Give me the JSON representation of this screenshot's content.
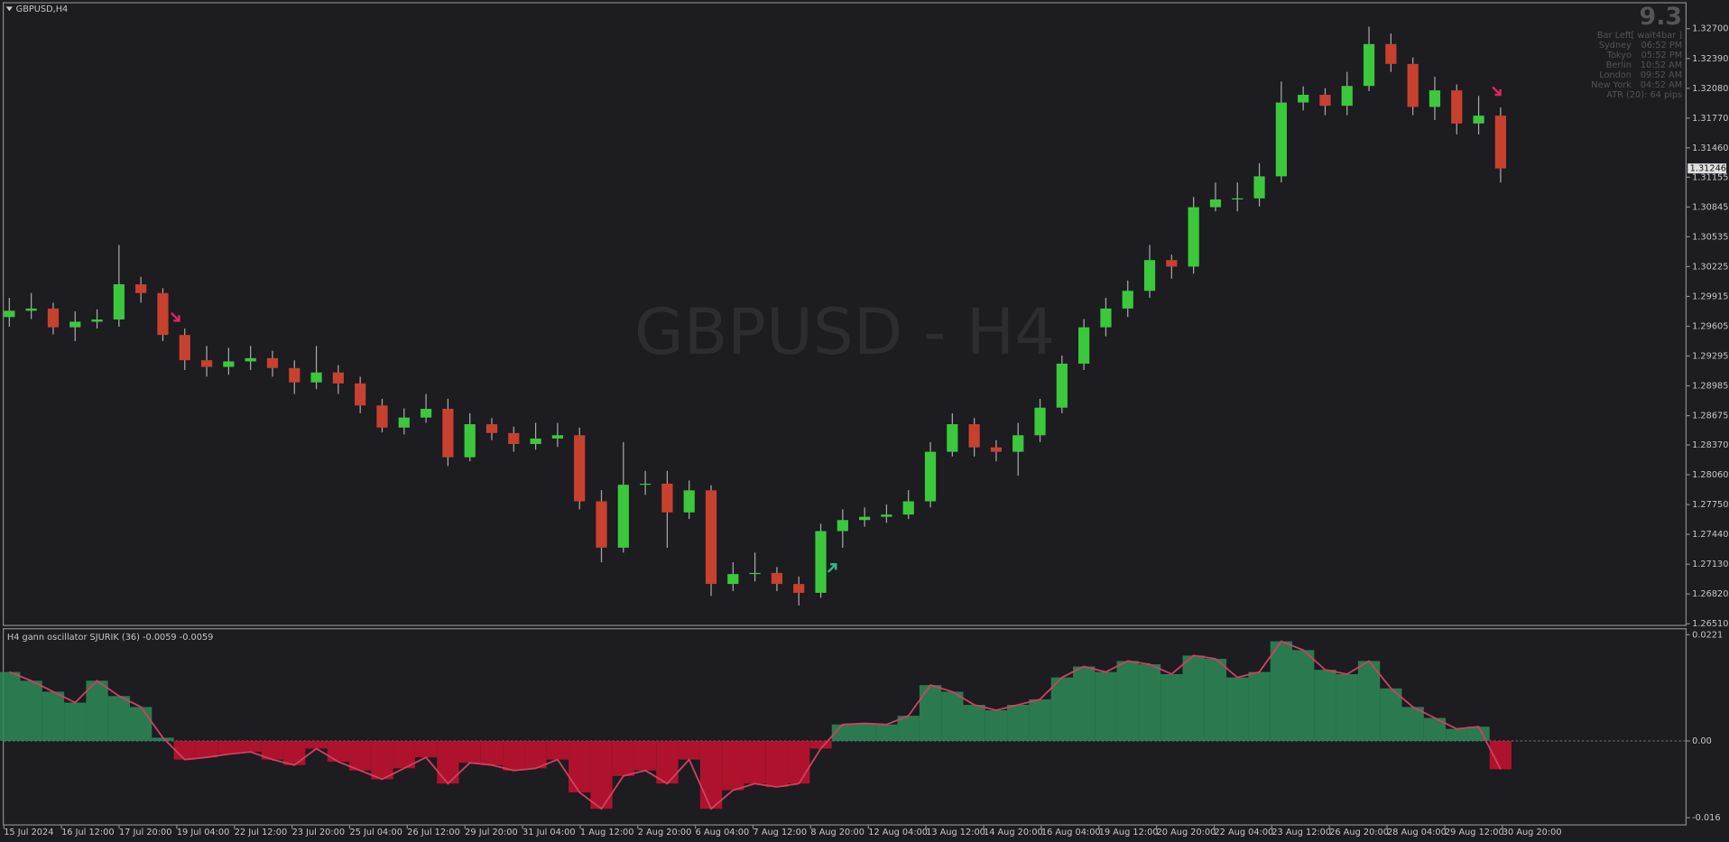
{
  "header": {
    "symbol_label": "GBPUSD,H4",
    "watermark": "GBPUSD - H4",
    "info_big": 9.3,
    "info_rows": [
      [
        "Bar Left",
        "[ wait4bar ]"
      ],
      [
        "Sydney",
        "06:52 PM"
      ],
      [
        "Tokyo",
        "05:52 PM"
      ],
      [
        "Berlin",
        "10:52 AM"
      ],
      [
        "London",
        "09:52 AM"
      ],
      [
        "New York",
        "04:52 AM"
      ]
    ],
    "atr": "ATR (20): 64 pips"
  },
  "chart_data": [
    {
      "type": "candlestick",
      "up_color": "#3cc83c",
      "down_color": "#c8412e",
      "open": [
        1.297,
        1.29766,
        1.29789,
        1.29594,
        1.29652,
        1.29675,
        1.30041,
        1.2995,
        1.29514,
        1.29251,
        1.29182,
        1.29239,
        1.29273,
        1.2917,
        1.29021,
        1.29124,
        1.2901,
        1.28781,
        1.28551,
        1.28655,
        1.28746,
        1.28242,
        1.28586,
        1.28494,
        1.2838,
        1.28437,
        1.28471,
        1.27784,
        1.27302,
        1.27956,
        1.27967,
        1.27669,
        1.27898,
        1.26924,
        1.27027,
        1.27039,
        1.26924,
        1.26832,
        1.27474,
        1.27589,
        1.27623,
        1.27646,
        1.27784,
        1.28299,
        1.28586,
        1.28345,
        1.28299,
        1.28471,
        1.28758,
        1.29216,
        1.29594,
        1.29789,
        1.29973,
        1.30293,
        1.30225,
        1.30843,
        1.30924,
        1.30935,
        1.31164,
        1.31932,
        1.32012,
        1.31898,
        1.32104,
        1.3254,
        1.32333,
        1.31886,
        1.32058,
        1.31714,
        1.31795
      ],
      "close": [
        1.29766,
        1.29789,
        1.29594,
        1.29652,
        1.29675,
        1.30041,
        1.2995,
        1.29514,
        1.29251,
        1.29182,
        1.29239,
        1.29273,
        1.2917,
        1.29021,
        1.29124,
        1.2901,
        1.28781,
        1.28551,
        1.28655,
        1.28746,
        1.28242,
        1.28586,
        1.28494,
        1.2838,
        1.28437,
        1.28471,
        1.27784,
        1.27302,
        1.27956,
        1.27967,
        1.27669,
        1.27898,
        1.26924,
        1.27027,
        1.27039,
        1.26924,
        1.26832,
        1.27474,
        1.27589,
        1.27623,
        1.27646,
        1.27784,
        1.28299,
        1.28586,
        1.28345,
        1.28299,
        1.28471,
        1.28758,
        1.29216,
        1.29594,
        1.29789,
        1.29973,
        1.30293,
        1.30225,
        1.30843,
        1.30924,
        1.30935,
        1.31164,
        1.31932,
        1.32012,
        1.31898,
        1.32104,
        1.3254,
        1.32333,
        1.31886,
        1.32058,
        1.31714,
        1.31795,
        1.31246
      ],
      "high": [
        1.299,
        1.2995,
        1.2985,
        1.2976,
        1.2978,
        1.3045,
        1.3012,
        1.3,
        1.2958,
        1.294,
        1.2938,
        1.294,
        1.2935,
        1.2925,
        1.294,
        1.292,
        1.2908,
        1.2885,
        1.2875,
        1.289,
        1.2885,
        1.287,
        1.2865,
        1.2856,
        1.286,
        1.286,
        1.2855,
        1.279,
        1.284,
        1.281,
        1.281,
        1.28,
        1.2795,
        1.2715,
        1.2725,
        1.271,
        1.27,
        1.2755,
        1.277,
        1.2772,
        1.2775,
        1.279,
        1.284,
        1.287,
        1.2865,
        1.2842,
        1.286,
        1.2885,
        1.293,
        1.2968,
        1.299,
        1.3008,
        1.3045,
        1.3035,
        1.3095,
        1.311,
        1.311,
        1.313,
        1.3215,
        1.321,
        1.3208,
        1.3225,
        1.3272,
        1.3265,
        1.324,
        1.322,
        1.3212,
        1.32,
        1.3188
      ],
      "low": [
        1.296,
        1.2968,
        1.2952,
        1.2945,
        1.2958,
        1.296,
        1.2985,
        1.2945,
        1.2915,
        1.2908,
        1.291,
        1.2915,
        1.2908,
        1.289,
        1.2895,
        1.289,
        1.287,
        1.285,
        1.2848,
        1.286,
        1.2815,
        1.282,
        1.2842,
        1.283,
        1.2832,
        1.2835,
        1.277,
        1.2715,
        1.2725,
        1.2785,
        1.273,
        1.276,
        1.268,
        1.2685,
        1.2695,
        1.2685,
        1.267,
        1.2678,
        1.273,
        1.2752,
        1.2756,
        1.276,
        1.2772,
        1.2825,
        1.2825,
        1.282,
        1.2805,
        1.284,
        1.287,
        1.2915,
        1.295,
        1.297,
        1.299,
        1.301,
        1.3015,
        1.308,
        1.308,
        1.3085,
        1.311,
        1.3185,
        1.318,
        1.318,
        1.3205,
        1.3225,
        1.318,
        1.3175,
        1.316,
        1.316,
        1.311
      ],
      "last_price": 1.31246,
      "ylim": [
        1.2651,
        1.327
      ],
      "yticks": [
        {
          "value": 1.327,
          "label": "1.32700"
        },
        {
          "value": 1.3239,
          "label": "1.32390"
        },
        {
          "value": 1.3208,
          "label": "1.32080"
        },
        {
          "value": 1.3177,
          "label": "1.31770"
        },
        {
          "value": 1.3146,
          "label": "1.31460"
        },
        {
          "value": 1.31155,
          "label": "1.31155"
        },
        {
          "value": 1.30845,
          "label": "1.30845"
        },
        {
          "value": 1.30535,
          "label": "1.30535"
        },
        {
          "value": 1.30225,
          "label": "1.30225"
        },
        {
          "value": 1.29915,
          "label": "1.29915"
        },
        {
          "value": 1.29605,
          "label": "1.29605"
        },
        {
          "value": 1.29295,
          "label": "1.29295"
        },
        {
          "value": 1.28985,
          "label": "1.28985"
        },
        {
          "value": 1.28675,
          "label": "1.28675"
        },
        {
          "value": 1.2837,
          "label": "1.28370"
        },
        {
          "value": 1.2806,
          "label": "1.28060"
        },
        {
          "value": 1.2775,
          "label": "1.27750"
        },
        {
          "value": 1.2744,
          "label": "1.27440"
        },
        {
          "value": 1.2713,
          "label": "1.27130"
        },
        {
          "value": 1.2682,
          "label": "1.26820"
        },
        {
          "value": 1.2651,
          "label": "1.26510"
        }
      ],
      "x_labels": [
        "15 Jul 2024",
        "16 Jul 12:00",
        "17 Jul 20:00",
        "19 Jul 04:00",
        "22 Jul 12:00",
        "23 Jul 20:00",
        "25 Jul 04:00",
        "26 Jul 12:00",
        "29 Jul 20:00",
        "31 Jul 04:00",
        "1 Aug 12:00",
        "2 Aug 20:00",
        "6 Aug 04:00",
        "7 Aug 12:00",
        "8 Aug 20:00",
        "12 Aug 04:00",
        "13 Aug 12:00",
        "14 Aug 20:00",
        "16 Aug 04:00",
        "19 Aug 12:00",
        "20 Aug 20:00",
        "22 Aug 04:00",
        "23 Aug 12:00",
        "26 Aug 20:00",
        "28 Aug 04:00",
        "29 Aug 12:00",
        "30 Aug 20:00"
      ]
    },
    {
      "type": "histogram-oscillator",
      "title": "H4 gann oscillator  SJURIK (36)  -0.0059 -0.0059",
      "positive_color": "#2e8b57",
      "negative_color": "#c8102e",
      "values": [
        0.01436,
        0.01254,
        0.01026,
        0.00798,
        0.01254,
        0.00935,
        0.00707,
        0.00068,
        -0.00388,
        -0.00342,
        -0.00274,
        -0.00228,
        -0.00388,
        -0.00502,
        -0.0016,
        -0.00433,
        -0.00616,
        -0.00798,
        -0.0057,
        -0.00342,
        -0.00889,
        -0.00456,
        -0.00502,
        -0.00616,
        -0.0057,
        -0.00388,
        -0.01072,
        -0.01414,
        -0.0073,
        -0.00616,
        -0.00889,
        -0.00388,
        -0.01414,
        -0.01026,
        -0.00889,
        -0.00958,
        -0.00889,
        -0.0016,
        0.00342,
        0.00365,
        0.00342,
        0.00524,
        0.01163,
        0.01026,
        0.00752,
        0.00638,
        0.00752,
        0.00866,
        0.01322,
        0.0155,
        0.01436,
        0.01664,
        0.01596,
        0.01391,
        0.01778,
        0.0171,
        0.01322,
        0.01436,
        0.02075,
        0.01892,
        0.01482,
        0.01391,
        0.01664,
        0.01094,
        0.00707,
        0.00479,
        0.00251,
        0.00296,
        -0.0059
      ],
      "ylim": [
        -0.016,
        0.0221
      ],
      "yticks": [
        0.0221,
        {
          "value": 0,
          "label": "0.00"
        },
        -0.016
      ]
    }
  ]
}
